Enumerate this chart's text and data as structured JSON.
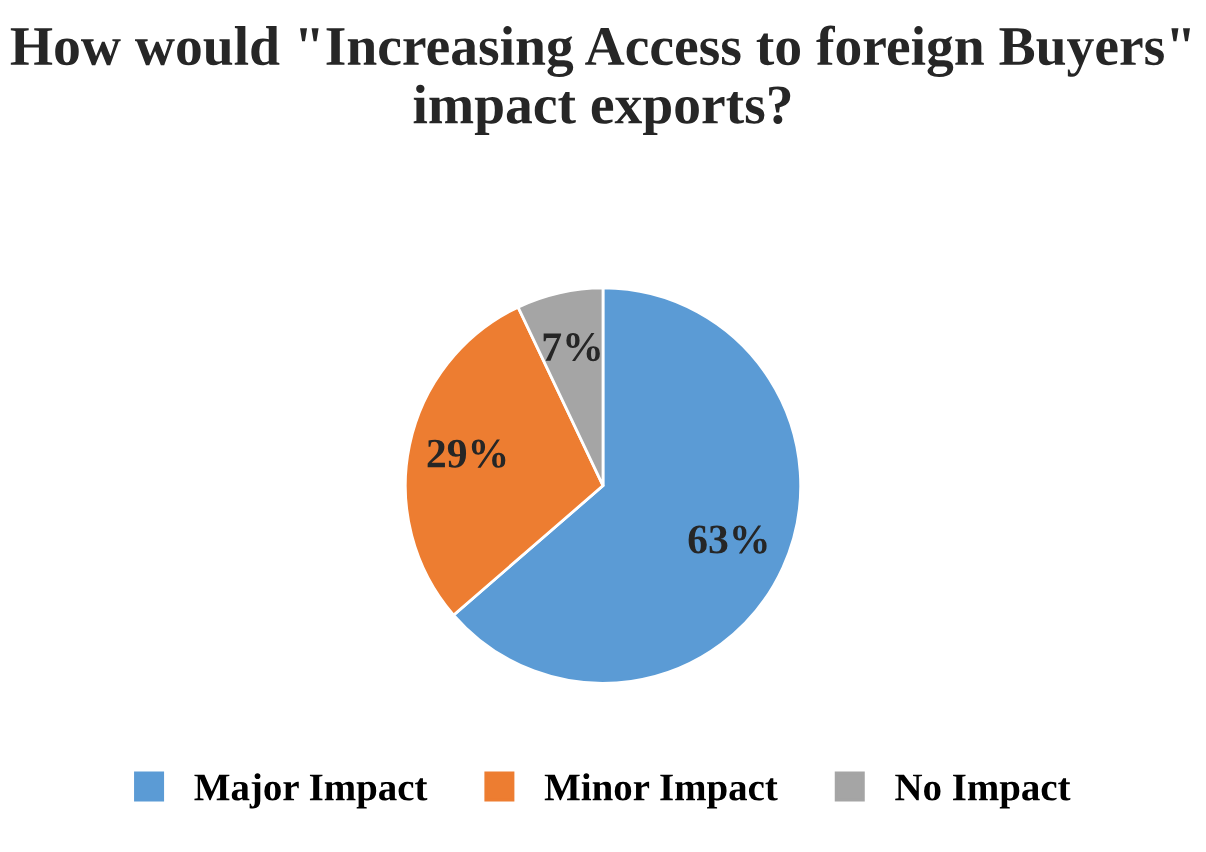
{
  "chart_data": {
    "type": "pie",
    "title": "How would \"Increasing Access to foreign Buyers\" impact exports?",
    "categories": [
      "Major Impact",
      "Minor Impact",
      "No Impact"
    ],
    "values": [
      63,
      29,
      7
    ],
    "colors": [
      "#5b9bd5",
      "#ed7d31",
      "#a5a5a5"
    ],
    "value_labels": [
      "63%",
      "29%",
      "7%"
    ],
    "legend": "bottom"
  }
}
